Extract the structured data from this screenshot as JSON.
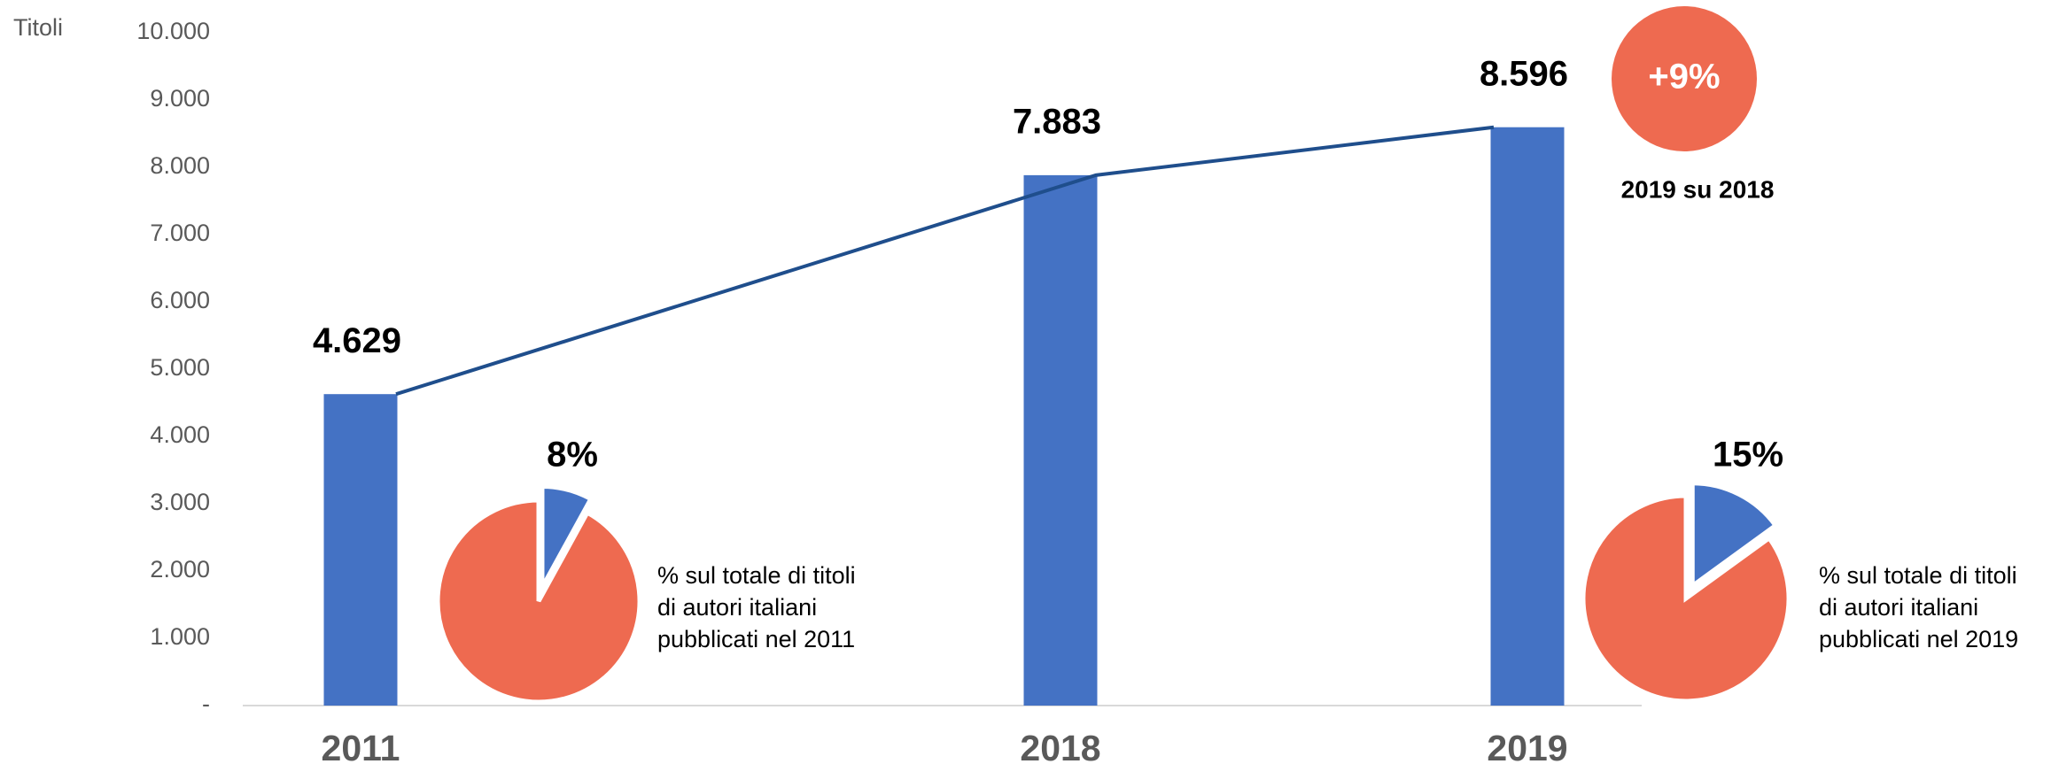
{
  "chart_data": [
    {
      "type": "bar",
      "y_axis_label": "Titoli",
      "categories": [
        "2011",
        "2018",
        "2019"
      ],
      "values": [
        4629,
        7883,
        8596
      ],
      "value_labels": [
        "4.629",
        "7.883",
        "8.596"
      ],
      "color": "#4472c4",
      "line_color": "#1f4e8c",
      "ylim": [
        0,
        10000
      ],
      "yticks": [
        {
          "value": 0,
          "label": "-"
        },
        {
          "value": 1000,
          "label": "1.000"
        },
        {
          "value": 2000,
          "label": "2.000"
        },
        {
          "value": 3000,
          "label": "3.000"
        },
        {
          "value": 4000,
          "label": "4.000"
        },
        {
          "value": 5000,
          "label": "5.000"
        },
        {
          "value": 6000,
          "label": "6.000"
        },
        {
          "value": 7000,
          "label": "7.000"
        },
        {
          "value": 8000,
          "label": "8.000"
        },
        {
          "value": 9000,
          "label": "9.000"
        },
        {
          "value": 10000,
          "label": "10.000"
        }
      ],
      "change": {
        "value": 9,
        "label": "+9%",
        "text": "2019 su 2018",
        "color": "#ee6a50"
      }
    },
    {
      "type": "pie",
      "values": [
        8,
        92
      ],
      "value_labels": [
        "8%",
        null
      ],
      "colors": [
        "#4472c4",
        "#ee6a50"
      ],
      "caption": [
        "% sul totale di titoli",
        "di autori italiani",
        "pubblicati nel 2011"
      ]
    },
    {
      "type": "pie",
      "values": [
        15,
        85
      ],
      "value_labels": [
        "15%",
        null
      ],
      "colors": [
        "#4472c4",
        "#ee6a50"
      ],
      "caption": [
        "% sul totale di titoli",
        "di autori italiani",
        "pubblicati nel 2019"
      ]
    }
  ]
}
